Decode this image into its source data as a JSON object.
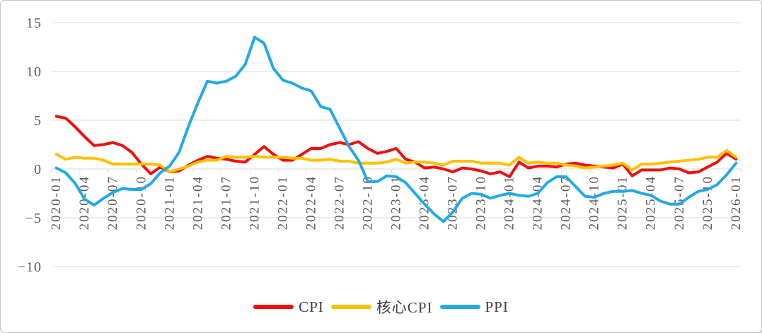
{
  "chart_data": {
    "type": "line",
    "title": "",
    "grid": "horizontal",
    "grid_color": "#d9d9d9",
    "axis_text_color": "#595959",
    "legend_text_color": "#404040",
    "legend_position": "bottom",
    "ylim": [
      -10,
      15
    ],
    "y_ticks": [
      {
        "value": 15,
        "label": "15"
      },
      {
        "value": 10,
        "label": "10"
      },
      {
        "value": 5,
        "label": "5"
      },
      {
        "value": 0,
        "label": "0"
      },
      {
        "value": -5,
        "label": "−5"
      },
      {
        "value": -10,
        "label": "−10"
      }
    ],
    "x_label_every": 3,
    "x": [
      "2020-01",
      "2020-02",
      "2020-03",
      "2020-04",
      "2020-05",
      "2020-06",
      "2020-07",
      "2020-08",
      "2020-09",
      "2020-10",
      "2020-11",
      "2020-12",
      "2021-01",
      "2021-02",
      "2021-03",
      "2021-04",
      "2021-05",
      "2021-06",
      "2021-07",
      "2021-08",
      "2021-09",
      "2021-10",
      "2021-11",
      "2021-12",
      "2022-01",
      "2022-02",
      "2022-03",
      "2022-04",
      "2022-05",
      "2022-06",
      "2022-07",
      "2022-08",
      "2022-09",
      "2022-10",
      "2022-11",
      "2022-12",
      "2023-01",
      "2023-02",
      "2023-03",
      "2023-04",
      "2023-05",
      "2023-06",
      "2023-07",
      "2023-08",
      "2023-09",
      "2023-10",
      "2023-11",
      "2023-12",
      "2024-01",
      "2024-02",
      "2024-03",
      "2024-04",
      "2024-05",
      "2024-06",
      "2024-07",
      "2024-08",
      "2024-09",
      "2024-10",
      "2024-11",
      "2024-12",
      "2025-01",
      "2025-02",
      "2025-03",
      "2025-04",
      "2025-05",
      "2025-06",
      "2025-07",
      "2025-08",
      "2025-09",
      "2025-10",
      "2025-11",
      "2025-12",
      "2026-01"
    ],
    "series": [
      {
        "name": "CPI",
        "color": "#ee0f0f",
        "values": [
          5.4,
          5.2,
          4.3,
          3.3,
          2.4,
          2.5,
          2.7,
          2.4,
          1.7,
          0.5,
          -0.5,
          0.2,
          -0.3,
          -0.2,
          0.4,
          0.9,
          1.3,
          1.1,
          1.0,
          0.8,
          0.7,
          1.5,
          2.3,
          1.5,
          0.9,
          0.9,
          1.5,
          2.1,
          2.1,
          2.5,
          2.7,
          2.5,
          2.8,
          2.1,
          1.6,
          1.8,
          2.1,
          1.0,
          0.7,
          0.1,
          0.2,
          0.0,
          -0.3,
          0.1,
          0.0,
          -0.2,
          -0.5,
          -0.3,
          -0.8,
          0.7,
          0.1,
          0.3,
          0.3,
          0.2,
          0.5,
          0.6,
          0.4,
          0.3,
          0.2,
          0.1,
          0.5,
          -0.7,
          -0.1,
          -0.1,
          -0.1,
          0.1,
          0.0,
          -0.4,
          -0.3,
          0.2,
          0.7,
          1.6,
          1.0
        ]
      },
      {
        "name": "核心CPI",
        "color": "#ffc000",
        "values": [
          1.5,
          1.0,
          1.2,
          1.1,
          1.1,
          0.9,
          0.5,
          0.5,
          0.5,
          0.5,
          0.5,
          0.4,
          -0.3,
          0.0,
          0.3,
          0.7,
          0.9,
          0.9,
          1.3,
          1.2,
          1.2,
          1.3,
          1.2,
          1.2,
          1.2,
          1.1,
          1.1,
          0.9,
          0.9,
          1.0,
          0.8,
          0.8,
          0.6,
          0.6,
          0.6,
          0.7,
          1.0,
          0.6,
          0.7,
          0.7,
          0.6,
          0.4,
          0.8,
          0.8,
          0.8,
          0.6,
          0.6,
          0.6,
          0.4,
          1.2,
          0.6,
          0.7,
          0.6,
          0.6,
          0.4,
          0.3,
          0.1,
          0.2,
          0.3,
          0.4,
          0.6,
          -0.1,
          0.5,
          0.5,
          0.6,
          0.7,
          0.8,
          0.9,
          1.0,
          1.2,
          1.2,
          1.9,
          1.2
        ]
      },
      {
        "name": "PPI",
        "color": "#24a9e4",
        "values": [
          0.1,
          -0.4,
          -1.5,
          -3.1,
          -3.7,
          -3.0,
          -2.4,
          -2.0,
          -2.1,
          -2.1,
          -1.5,
          -0.4,
          0.3,
          1.7,
          4.4,
          6.8,
          9.0,
          8.8,
          9.0,
          9.5,
          10.7,
          13.5,
          12.9,
          10.3,
          9.1,
          8.8,
          8.3,
          8.0,
          6.4,
          6.1,
          4.2,
          2.3,
          0.9,
          -1.3,
          -1.3,
          -0.7,
          -0.8,
          -1.4,
          -2.5,
          -3.6,
          -4.6,
          -5.4,
          -4.4,
          -3.0,
          -2.5,
          -2.6,
          -3.0,
          -2.7,
          -2.5,
          -2.7,
          -2.8,
          -2.5,
          -1.4,
          -0.8,
          -0.8,
          -1.8,
          -2.8,
          -2.9,
          -2.5,
          -2.3,
          -2.3,
          -2.2,
          -2.5,
          -2.7,
          -3.3,
          -3.6,
          -3.6,
          -2.9,
          -2.3,
          -2.1,
          -1.6,
          -0.6,
          0.6
        ]
      }
    ]
  }
}
